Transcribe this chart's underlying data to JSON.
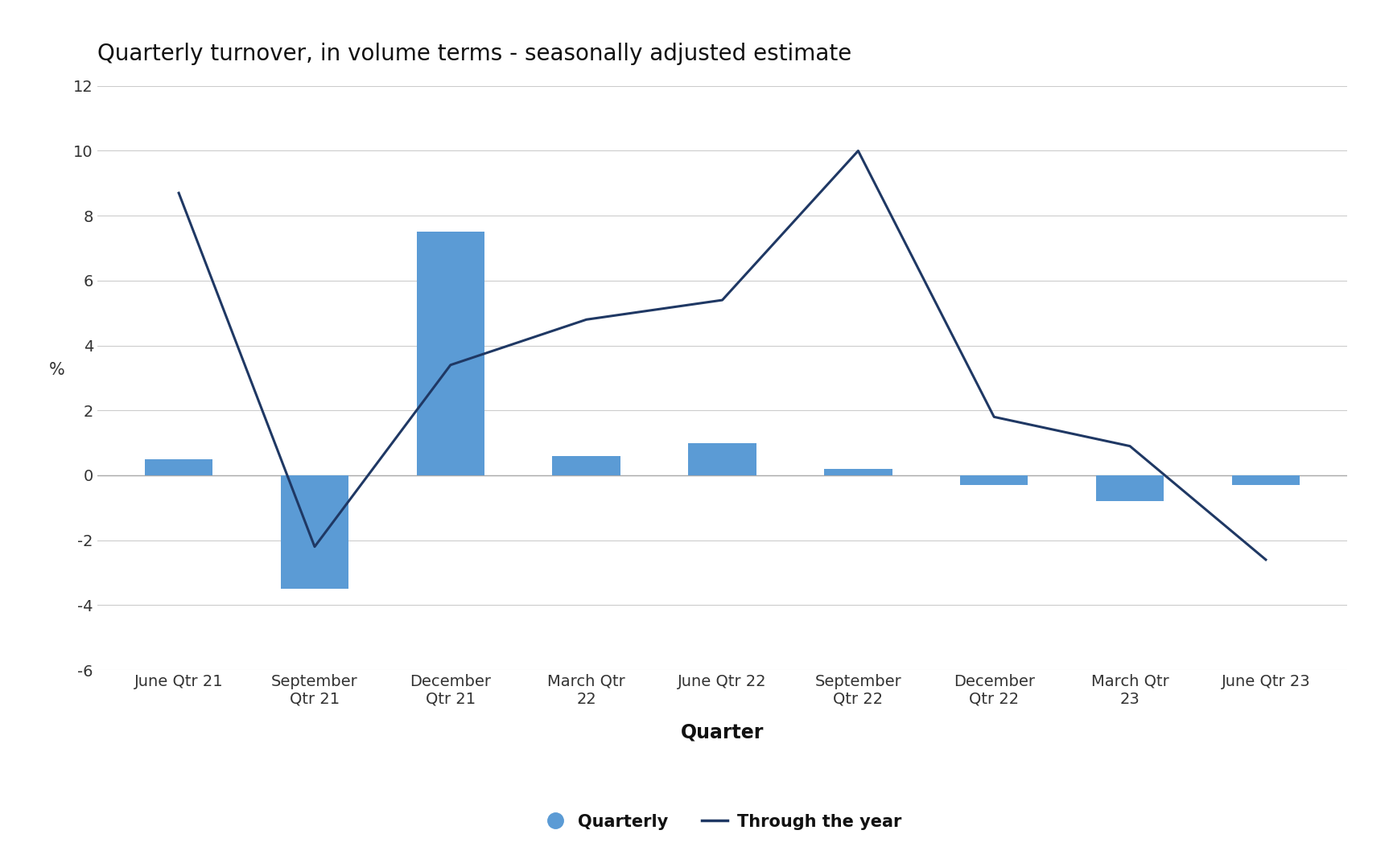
{
  "title": "Quarterly turnover, in volume terms - seasonally adjusted estimate",
  "categories": [
    "June Qtr 21",
    "September\nQtr 21",
    "December\nQtr 21",
    "March Qtr\n22",
    "June Qtr 22",
    "September\nQtr 22",
    "December\nQtr 22",
    "March Qtr\n23",
    "June Qtr 23"
  ],
  "bar_values": [
    0.5,
    -3.5,
    7.5,
    0.6,
    1.0,
    0.2,
    -0.3,
    -0.8,
    -0.3
  ],
  "line_values": [
    8.7,
    -2.2,
    3.4,
    4.8,
    5.4,
    10.0,
    1.8,
    0.9,
    -2.6
  ],
  "bar_color": "#5B9BD5",
  "line_color": "#1F3864",
  "ylabel": "%",
  "xlabel": "Quarter",
  "ylim": [
    -6,
    12
  ],
  "yticks": [
    -6,
    -4,
    -2,
    0,
    2,
    4,
    6,
    8,
    10,
    12
  ],
  "title_fontsize": 20,
  "axis_fontsize": 15,
  "tick_fontsize": 14,
  "legend_fontsize": 15,
  "background_color": "#ffffff",
  "grid_color": "#cccccc",
  "legend_quarterly": "Quarterly",
  "legend_line": "Through the year"
}
